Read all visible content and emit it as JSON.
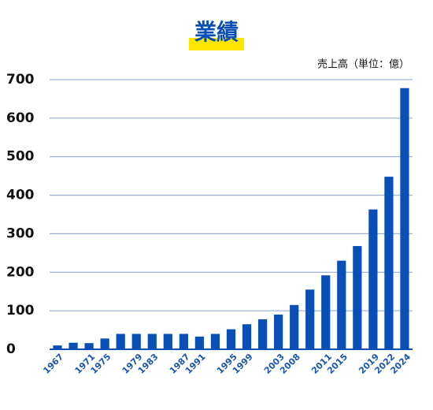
{
  "chart_data": {
    "type": "bar",
    "title": "業績",
    "unit_label": "売上高（単位：億）",
    "categories": [
      "1967",
      null,
      "1971",
      "1975",
      null,
      "1979",
      "1983",
      null,
      "1987",
      "1991",
      null,
      "1995",
      "1999",
      null,
      "2003",
      "2008",
      null,
      "2011",
      "2015",
      null,
      "2019",
      "2022",
      "2024"
    ],
    "values": [
      10,
      17,
      16,
      28,
      40,
      40,
      40,
      40,
      40,
      33,
      40,
      52,
      65,
      78,
      90,
      115,
      155,
      192,
      230,
      268,
      363,
      448,
      678
    ],
    "color": "#0a4fb5",
    "ylim": [
      0,
      700
    ],
    "yticks": [
      0,
      100,
      200,
      300,
      400,
      500,
      600,
      700
    ],
    "grid": true
  }
}
